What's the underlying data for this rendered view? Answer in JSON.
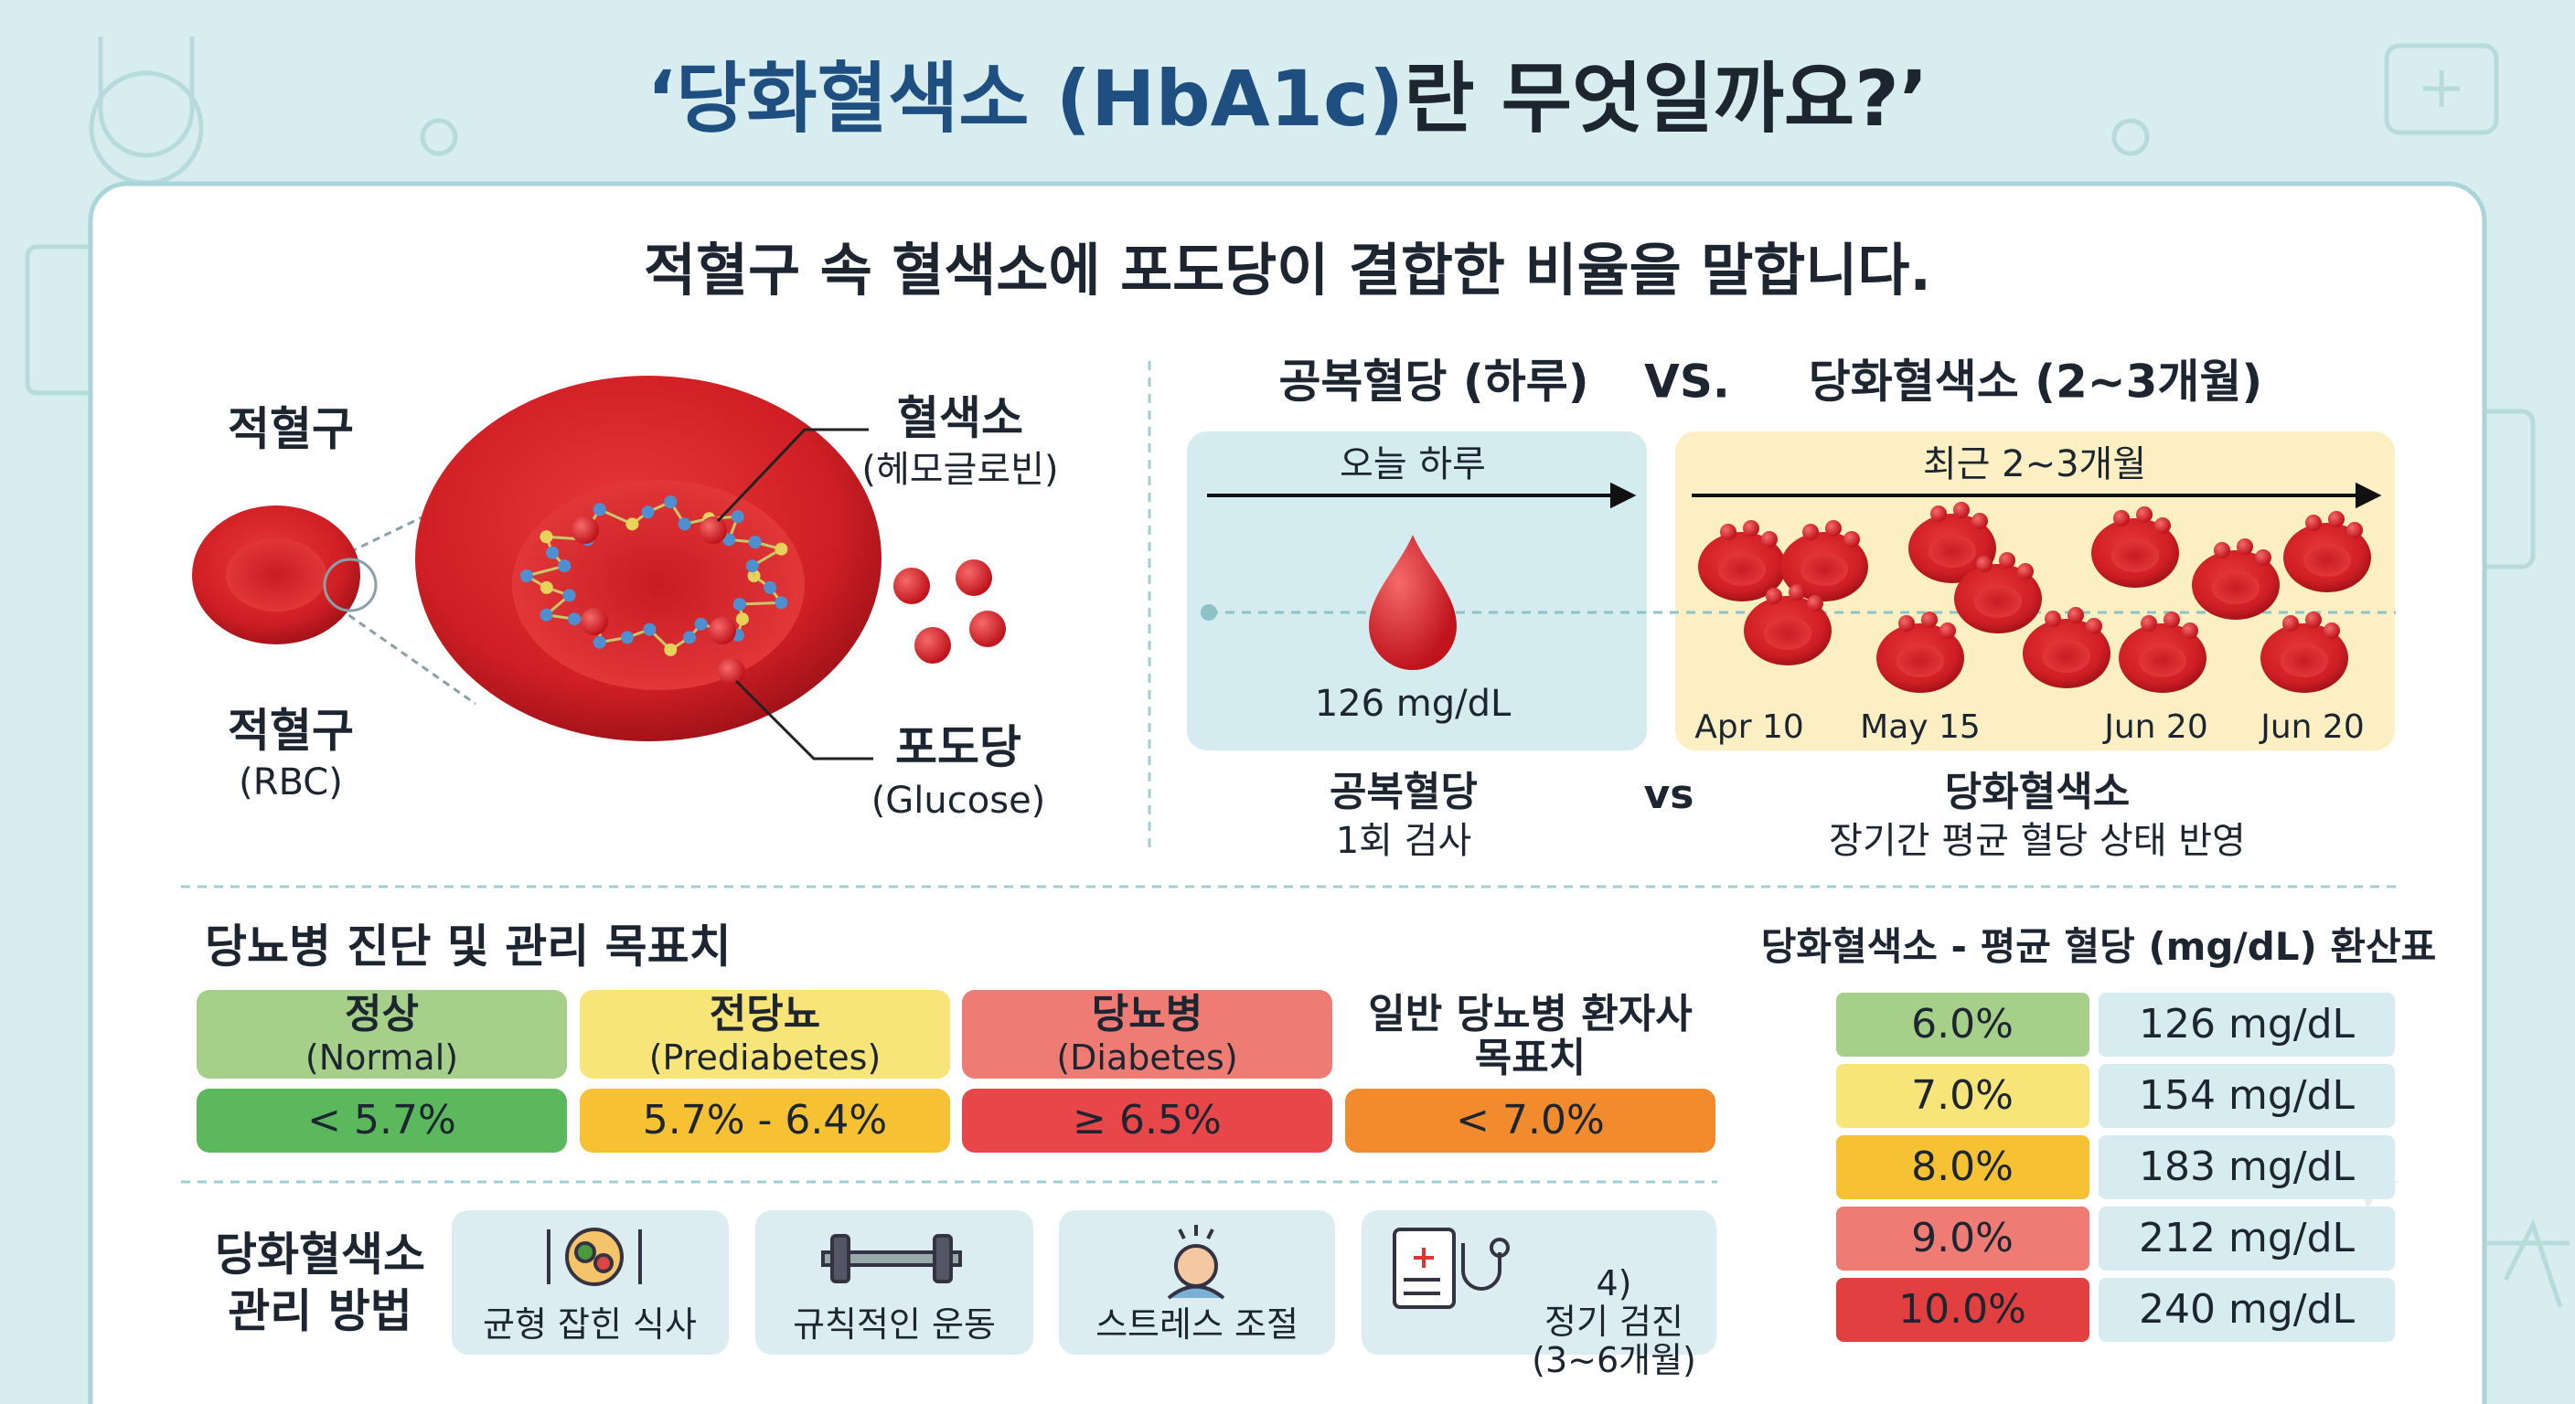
{
  "title": {
    "highlight": "‘당화혈색소 (HbA1c)",
    "rest": "란 무엇일까요?’"
  },
  "subtitle": "적혈구 속 혈색소에 포도당이 결합한 비율을 말합니다.",
  "diagram": {
    "rbc_label": "적혈구",
    "rbc_caption": "적혈구",
    "rbc_caption_sub": "(RBC)",
    "hemoglobin": "혈색소",
    "hemoglobin_sub": "(헤모글로빈)",
    "glucose": "포도당",
    "glucose_sub": "(Glucose)"
  },
  "comparison": {
    "heading_left": "공복혈당 (하루)",
    "vs": "VS.",
    "heading_right": "당화혈색소 (2~3개월)",
    "left_period": "오늘 하루",
    "left_value": "126 mg/dL",
    "right_period": "최근 2~3개월",
    "dates": [
      "Apr 10",
      "May 15",
      "Jun 20",
      "Jun 20"
    ],
    "left_caption": "공복혈당",
    "left_note": "1회 검사",
    "vs_small": "vs",
    "right_caption": "당화혈색소",
    "right_note": "장기간 평균 혈당 상태 반영"
  },
  "targets": {
    "title": "당뇨병 진단 및 관리 목표치",
    "items": [
      {
        "label": "정상",
        "sub": "(Normal)",
        "range": "< 5.7%"
      },
      {
        "label": "전당뇨",
        "sub": "(Prediabetes)",
        "range": "5.7% - 6.4%"
      },
      {
        "label": "당뇨병",
        "sub": "(Diabetes)",
        "range": "≥ 6.5%"
      },
      {
        "label": "일반 당뇨병 환자사",
        "sub": "목표치",
        "range": "< 7.0%"
      }
    ]
  },
  "management": {
    "title": [
      "당화혈색소",
      "관리 방법"
    ],
    "items": [
      [
        "균형 잡힌 식사"
      ],
      [
        "규칙적인 운동"
      ],
      [
        "스트레스 조절"
      ],
      [
        "4)",
        "정기 검진",
        "(3~6개월)"
      ]
    ]
  },
  "conversion": {
    "title": "당화혈색소 - 평균 혈당 (mg/dL) 환산표",
    "rows": [
      [
        "6.0%",
        "126 mg/dL"
      ],
      [
        "7.0%",
        "154 mg/dL"
      ],
      [
        "8.0%",
        "183 mg/dL"
      ],
      [
        "9.0%",
        "212 mg/dL"
      ],
      [
        "10.0%",
        "240 mg/dL"
      ]
    ]
  }
}
